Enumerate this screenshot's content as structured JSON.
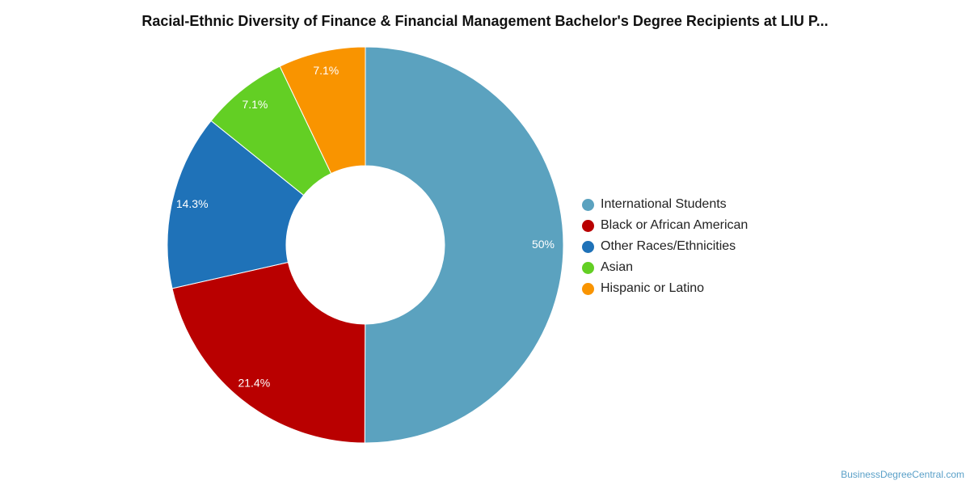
{
  "title": "Racial-Ethnic Diversity of Finance & Financial Management Bachelor's Degree Recipients at LIU P...",
  "watermark": "BusinessDegreeCentral.com",
  "chart_data": {
    "type": "pie",
    "style": "donut",
    "legend_position": "right",
    "categories": [
      "International Students",
      "Black or African American",
      "Other Races/Ethnicities",
      "Asian",
      "Hispanic or Latino"
    ],
    "values": [
      50,
      21.4,
      14.3,
      7.1,
      7.1
    ],
    "labels": [
      "50%",
      "21.4%",
      "14.3%",
      "7.1%",
      "7.1%"
    ],
    "colors": [
      "#5ba2bf",
      "#b90000",
      "#1f72b8",
      "#63cf24",
      "#f99400"
    ]
  }
}
